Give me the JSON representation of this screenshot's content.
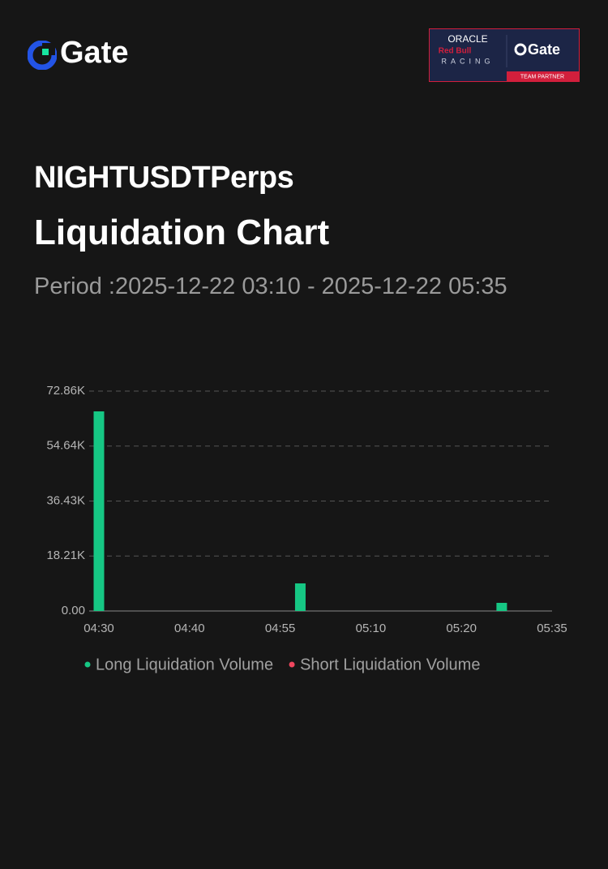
{
  "header": {
    "brand": "Gate",
    "badge": {
      "line1": "ORACLE",
      "line2": "Red Bull",
      "line3": "RACING",
      "brand": "Gate",
      "tag": "TEAM PARTNER"
    }
  },
  "chart_data": {
    "type": "bar",
    "title": "NIGHTUSDTPerps",
    "subtitle": "Liquidation Chart",
    "period": "Period :2025-12-22 03:10 - 2025-12-22 05:35",
    "categories": [
      "04:30",
      null,
      null,
      null,
      null,
      null,
      null,
      null,
      null,
      "04:40",
      null,
      null,
      null,
      null,
      null,
      null,
      null,
      null,
      "04:55",
      null,
      null,
      null,
      null,
      null,
      null,
      null,
      null,
      "05:10",
      null,
      null,
      null,
      null,
      null,
      null,
      null,
      null,
      "05:20",
      null,
      null,
      null,
      null,
      null,
      null,
      null,
      null,
      "05:35"
    ],
    "series": [
      {
        "name": "Long Liquidation Volume",
        "color": "#16c784",
        "values": [
          66140,
          0,
          0,
          0,
          0,
          0,
          0,
          0,
          0,
          0,
          0,
          0,
          0,
          0,
          0,
          0,
          0,
          0,
          0,
          0,
          9140,
          0,
          0,
          0,
          0,
          0,
          0,
          0,
          0,
          0,
          0,
          0,
          0,
          0,
          0,
          0,
          0,
          0,
          0,
          0,
          2690,
          0,
          0,
          0,
          0,
          0
        ]
      },
      {
        "name": "Short Liquidation Volume",
        "color": "#f0465e",
        "values": [
          0,
          0,
          0,
          0,
          0,
          0,
          0,
          0,
          0,
          0,
          0,
          0,
          0,
          0,
          0,
          0,
          0,
          0,
          0,
          0,
          0,
          0,
          0,
          0,
          0,
          0,
          0,
          0,
          0,
          0,
          0,
          0,
          0,
          0,
          0,
          0,
          0,
          0,
          0,
          0,
          0,
          0,
          0,
          0,
          0,
          0
        ]
      }
    ],
    "ylim": [
      0,
      72860
    ],
    "yticks": [
      {
        "value": 0,
        "label": "0.00"
      },
      {
        "value": 18210,
        "label": "18.21K"
      },
      {
        "value": 36430,
        "label": "36.43K"
      },
      {
        "value": 54640,
        "label": "54.64K"
      },
      {
        "value": 72860,
        "label": "72.86K"
      }
    ],
    "grid": true
  }
}
